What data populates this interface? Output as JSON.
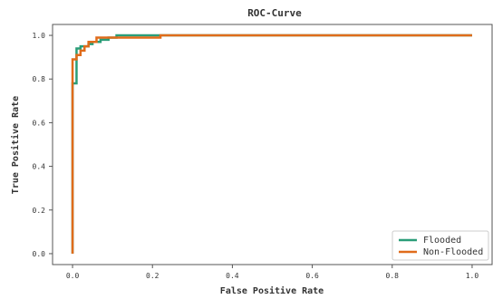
{
  "chart_data": {
    "type": "line",
    "title": "ROC-Curve",
    "xlabel": "False Positive Rate",
    "ylabel": "True Positive Rate",
    "xlim": [
      -0.05,
      1.05
    ],
    "ylim": [
      -0.05,
      1.05
    ],
    "xticks": [
      "0.0",
      "0.2",
      "0.4",
      "0.6",
      "0.8",
      "1.0"
    ],
    "yticks": [
      "0.0",
      "0.2",
      "0.4",
      "0.6",
      "0.8",
      "1.0"
    ],
    "grid": false,
    "legend_position": "bottom-right",
    "series": [
      {
        "name": "Flooded",
        "color": "#2a9d78",
        "points": [
          [
            0.0,
            0.0
          ],
          [
            0.0,
            0.78
          ],
          [
            0.01,
            0.78
          ],
          [
            0.01,
            0.94
          ],
          [
            0.02,
            0.94
          ],
          [
            0.02,
            0.95
          ],
          [
            0.04,
            0.95
          ],
          [
            0.04,
            0.96
          ],
          [
            0.05,
            0.96
          ],
          [
            0.05,
            0.97
          ],
          [
            0.07,
            0.97
          ],
          [
            0.07,
            0.98
          ],
          [
            0.09,
            0.98
          ],
          [
            0.09,
            0.99
          ],
          [
            0.11,
            0.99
          ],
          [
            0.11,
            1.0
          ],
          [
            1.0,
            1.0
          ]
        ]
      },
      {
        "name": "Non-Flooded",
        "color": "#e06c1b",
        "points": [
          [
            0.0,
            0.0
          ],
          [
            0.0,
            0.89
          ],
          [
            0.01,
            0.89
          ],
          [
            0.01,
            0.91
          ],
          [
            0.02,
            0.91
          ],
          [
            0.02,
            0.93
          ],
          [
            0.03,
            0.93
          ],
          [
            0.03,
            0.95
          ],
          [
            0.04,
            0.95
          ],
          [
            0.04,
            0.97
          ],
          [
            0.06,
            0.97
          ],
          [
            0.06,
            0.99
          ],
          [
            0.22,
            0.99
          ],
          [
            0.22,
            1.0
          ],
          [
            1.0,
            1.0
          ]
        ]
      }
    ]
  }
}
